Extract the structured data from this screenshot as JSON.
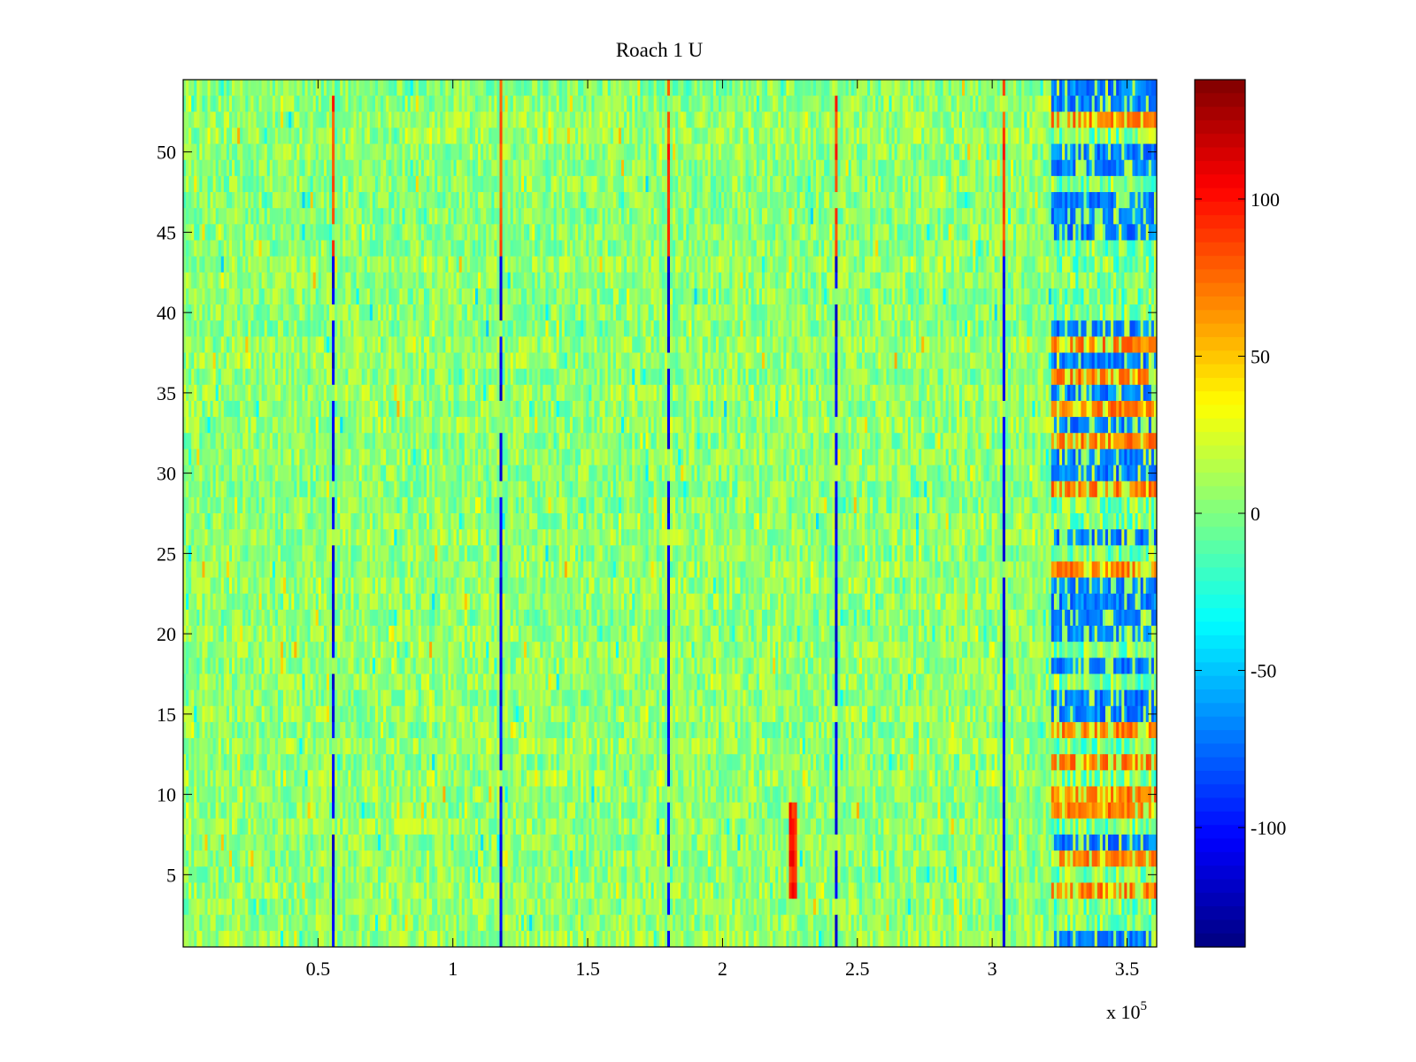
{
  "chart_data": {
    "type": "heatmap",
    "title": "Roach 1 U",
    "xlabel": "",
    "ylabel": "",
    "x_exponent_label": "x 10",
    "x_exponent_power": "5",
    "xlim": [
      0,
      3.61
    ],
    "ylim": [
      0.5,
      54.5
    ],
    "x_ticks": [
      0.5,
      1,
      1.5,
      2,
      2.5,
      3,
      3.5
    ],
    "x_tick_labels": [
      "0.5",
      "1",
      "1.5",
      "2",
      "2.5",
      "3",
      "3.5"
    ],
    "y_ticks": [
      5,
      10,
      15,
      20,
      25,
      30,
      35,
      40,
      45,
      50
    ],
    "y_tick_labels": [
      "5",
      "10",
      "15",
      "20",
      "25",
      "30",
      "35",
      "40",
      "45",
      "50"
    ],
    "rows": 54,
    "columns": 360,
    "colormap": "jet",
    "colorbar": {
      "clim": [
        -138,
        138
      ],
      "ticks": [
        -100,
        -50,
        0,
        50,
        100
      ],
      "tick_labels": [
        "-100",
        "-50",
        "0",
        "50",
        "100"
      ]
    },
    "background_range": [
      -15,
      25
    ],
    "event_columns_x": [
      0.555,
      1.18,
      1.8,
      2.42,
      3.045
    ],
    "event_value_upper_rows": 90,
    "event_value_lower_rows": -120,
    "artifact_region_x": [
      3.22,
      3.61
    ],
    "artifact_values": {
      "high": 70,
      "low": -70
    },
    "small_event_x": 2.26,
    "small_event_rows": [
      4,
      9
    ]
  }
}
